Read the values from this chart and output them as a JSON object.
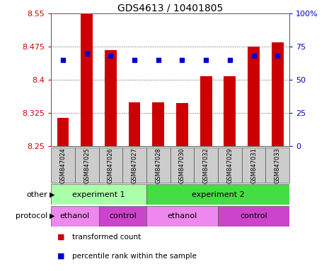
{
  "title": "GDS4613 / 10401805",
  "samples": [
    "GSM847024",
    "GSM847025",
    "GSM847026",
    "GSM847027",
    "GSM847028",
    "GSM847030",
    "GSM847032",
    "GSM847029",
    "GSM847031",
    "GSM847033"
  ],
  "transformed_count": [
    8.315,
    8.548,
    8.468,
    8.35,
    8.35,
    8.348,
    8.408,
    8.408,
    8.475,
    8.485
  ],
  "percentile_rank": [
    65,
    70,
    68,
    65,
    65,
    65,
    65,
    65,
    68,
    68
  ],
  "ylim": [
    8.25,
    8.55
  ],
  "yticks": [
    8.25,
    8.325,
    8.4,
    8.475,
    8.55
  ],
  "ytick_labels": [
    "8.25",
    "8.325",
    "8.4",
    "8.475",
    "8.55"
  ],
  "y2lim": [
    0,
    100
  ],
  "y2ticks": [
    0,
    25,
    50,
    75,
    100
  ],
  "y2tick_labels": [
    "0",
    "25",
    "50",
    "75",
    "100%"
  ],
  "bar_color": "#cc0000",
  "dot_color": "#0000cc",
  "bar_bottom": 8.25,
  "bar_width": 0.5,
  "grid_color": "#555555",
  "bg_color": "#ffffff",
  "axis_label_color_left": "#cc0000",
  "axis_label_color_right": "#0000cc",
  "other_groups": [
    {
      "label": "experiment 1",
      "start": 0,
      "end": 4,
      "color": "#aaffaa"
    },
    {
      "label": "experiment 2",
      "start": 4,
      "end": 10,
      "color": "#44dd44"
    }
  ],
  "protocol_groups": [
    {
      "label": "ethanol",
      "start": 0,
      "end": 2,
      "color": "#ee88ee"
    },
    {
      "label": "control",
      "start": 2,
      "end": 4,
      "color": "#cc44cc"
    },
    {
      "label": "ethanol",
      "start": 4,
      "end": 7,
      "color": "#ee88ee"
    },
    {
      "label": "control",
      "start": 7,
      "end": 10,
      "color": "#cc44cc"
    }
  ],
  "legend_items": [
    {
      "label": "transformed count",
      "color": "#cc0000"
    },
    {
      "label": "percentile rank within the sample",
      "color": "#0000cc"
    }
  ],
  "sample_box_color": "#cccccc",
  "other_label": "other",
  "protocol_label": "protocol"
}
